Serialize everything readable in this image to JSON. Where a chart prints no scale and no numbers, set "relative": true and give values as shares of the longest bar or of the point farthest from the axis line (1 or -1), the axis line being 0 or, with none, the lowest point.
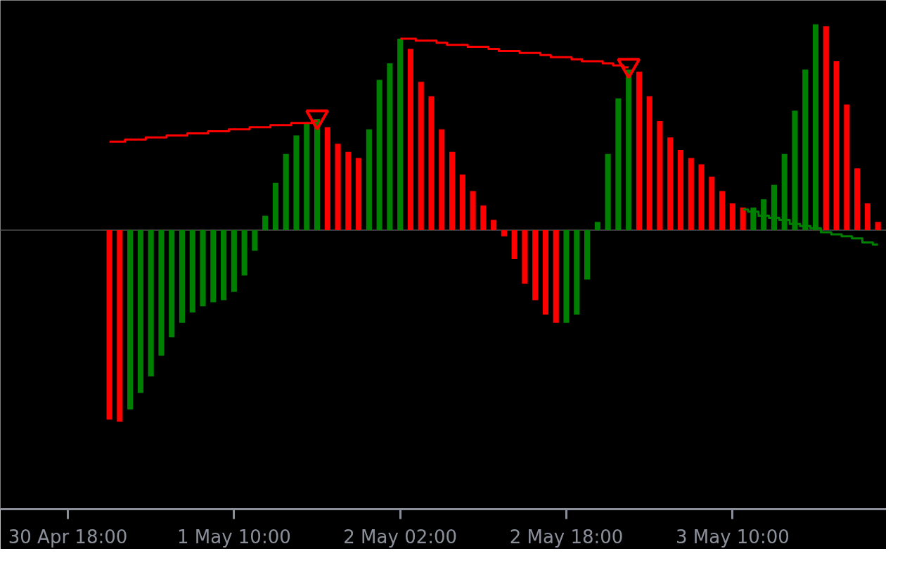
{
  "chart_data": {
    "type": "bar",
    "relative": true,
    "ref_lines": [
      {
        "axis": "y",
        "value": 0,
        "color": "#3a3a3a"
      }
    ],
    "categories": [
      "30 Apr 18:00",
      null,
      null,
      null,
      null,
      null,
      null,
      null,
      null,
      null,
      null,
      null,
      null,
      null,
      null,
      null,
      "1 May 10:00",
      null,
      null,
      null,
      null,
      null,
      null,
      null,
      null,
      null,
      null,
      null,
      null,
      null,
      null,
      null,
      "2 May 02:00",
      null,
      null,
      null,
      null,
      null,
      null,
      null,
      null,
      null,
      null,
      null,
      null,
      null,
      null,
      null,
      "2 May 18:00",
      null,
      null,
      null,
      null,
      null,
      null,
      null,
      null,
      null,
      null,
      null,
      null,
      null,
      null,
      null,
      "3 May 10:00",
      null,
      null,
      null,
      null,
      null,
      null,
      null,
      null,
      null,
      null,
      null,
      null,
      null,
      null
    ],
    "series": [
      {
        "values": [
          null,
          null,
          null,
          null,
          -0.92,
          -0.93,
          -0.87,
          -0.79,
          -0.71,
          -0.61,
          -0.52,
          -0.45,
          -0.4,
          -0.37,
          -0.35,
          -0.34,
          -0.3,
          -0.22,
          -0.1,
          0.07,
          0.23,
          0.37,
          0.46,
          0.52,
          0.54,
          0.5,
          0.42,
          0.38,
          0.35,
          0.49,
          0.73,
          0.81,
          0.93,
          0.88,
          0.72,
          0.65,
          0.49,
          0.38,
          0.27,
          0.19,
          0.12,
          0.05,
          -0.03,
          -0.14,
          -0.26,
          -0.34,
          -0.41,
          -0.45,
          -0.45,
          -0.41,
          -0.24,
          0.04,
          0.37,
          0.64,
          0.78,
          0.77,
          0.65,
          0.53,
          0.45,
          0.39,
          0.35,
          0.32,
          0.26,
          0.19,
          0.13,
          0.11,
          0.11,
          0.15,
          0.22,
          0.37,
          0.58,
          0.78,
          1.0,
          0.99,
          0.82,
          0.61,
          0.3,
          0.13,
          0.04
        ],
        "colors": [
          null,
          null,
          null,
          null,
          "#ff0000",
          "#ff0000",
          "#008000",
          "#008000",
          "#008000",
          "#008000",
          "#008000",
          "#008000",
          "#008000",
          "#008000",
          "#008000",
          "#008000",
          "#008000",
          "#008000",
          "#008000",
          "#008000",
          "#008000",
          "#008000",
          "#008000",
          "#008000",
          "#008000",
          "#ff0000",
          "#ff0000",
          "#ff0000",
          "#ff0000",
          "#008000",
          "#008000",
          "#008000",
          "#008000",
          "#ff0000",
          "#ff0000",
          "#ff0000",
          "#ff0000",
          "#ff0000",
          "#ff0000",
          "#ff0000",
          "#ff0000",
          "#ff0000",
          "#ff0000",
          "#ff0000",
          "#ff0000",
          "#ff0000",
          "#ff0000",
          "#ff0000",
          "#008000",
          "#008000",
          "#008000",
          "#008000",
          "#008000",
          "#008000",
          "#008000",
          "#ff0000",
          "#ff0000",
          "#ff0000",
          "#ff0000",
          "#ff0000",
          "#ff0000",
          "#ff0000",
          "#ff0000",
          "#ff0000",
          "#ff0000",
          "#ff0000",
          "#008000",
          "#008000",
          "#008000",
          "#008000",
          "#008000",
          "#008000",
          "#008000",
          "#ff0000",
          "#ff0000",
          "#ff0000",
          "#ff0000",
          "#ff0000",
          "#ff0000"
        ]
      },
      {
        "type": "step",
        "color": "#ff0000",
        "values": [
          null,
          null,
          null,
          null,
          0.43,
          0.43,
          0.44,
          0.44,
          0.45,
          0.45,
          0.46,
          0.46,
          0.47,
          0.47,
          0.48,
          0.48,
          0.49,
          0.49,
          0.5,
          0.5,
          0.51,
          0.51,
          0.52,
          0.52,
          0.53,
          null,
          null,
          null,
          null,
          null,
          null,
          null,
          null,
          null,
          null,
          null,
          null,
          null,
          null,
          null,
          null,
          null,
          null,
          null,
          null,
          null,
          null,
          null,
          null,
          null,
          null,
          null,
          null,
          null,
          null,
          null,
          null,
          null,
          null,
          null,
          null,
          null,
          null,
          null,
          null,
          null,
          null,
          null,
          null,
          null,
          null,
          null,
          null,
          null,
          null,
          null,
          null,
          null,
          null
        ]
      },
      {
        "type": "step",
        "color": "#ff0000",
        "values": [
          null,
          null,
          null,
          null,
          null,
          null,
          null,
          null,
          null,
          null,
          null,
          null,
          null,
          null,
          null,
          null,
          null,
          null,
          null,
          null,
          null,
          null,
          null,
          null,
          null,
          null,
          null,
          null,
          null,
          null,
          null,
          null,
          0.93,
          0.93,
          0.92,
          0.92,
          0.91,
          0.9,
          0.9,
          0.89,
          0.89,
          0.88,
          0.87,
          0.87,
          0.86,
          0.86,
          0.85,
          0.84,
          0.84,
          0.83,
          0.82,
          0.82,
          0.81,
          0.8,
          0.79,
          null,
          null,
          null,
          null,
          null,
          null,
          null,
          null,
          null,
          null,
          null,
          null,
          null,
          null,
          null,
          null,
          null,
          null,
          null,
          null,
          null,
          null,
          null,
          null
        ]
      },
      {
        "type": "step",
        "color": "#008000",
        "values": [
          null,
          null,
          null,
          null,
          null,
          null,
          null,
          null,
          null,
          null,
          null,
          null,
          null,
          null,
          null,
          null,
          null,
          null,
          null,
          null,
          null,
          null,
          null,
          null,
          null,
          null,
          null,
          null,
          null,
          null,
          null,
          null,
          null,
          null,
          null,
          null,
          null,
          null,
          null,
          null,
          null,
          null,
          null,
          null,
          null,
          null,
          null,
          null,
          null,
          null,
          null,
          null,
          null,
          null,
          null,
          null,
          null,
          null,
          null,
          null,
          null,
          null,
          null,
          null,
          null,
          0.1,
          0.09,
          0.07,
          0.06,
          0.05,
          0.03,
          0.02,
          0.01,
          -0.01,
          -0.02,
          -0.03,
          -0.04,
          -0.06,
          -0.07
        ]
      },
      {
        "type": "scatter",
        "color": "#ff0000",
        "marker": "triangle",
        "values": [
          null,
          null,
          null,
          null,
          null,
          null,
          null,
          null,
          null,
          null,
          null,
          null,
          null,
          null,
          null,
          null,
          null,
          null,
          null,
          null,
          null,
          null,
          null,
          null,
          0.55,
          null,
          null,
          null,
          null,
          null,
          null,
          null,
          null,
          null,
          null,
          null,
          null,
          null,
          null,
          null,
          null,
          null,
          null,
          null,
          null,
          null,
          null,
          null,
          null,
          null,
          null,
          null,
          null,
          null,
          0.8,
          null,
          null,
          null,
          null,
          null,
          null,
          null,
          null,
          null,
          null,
          null,
          null,
          null,
          null,
          null,
          null,
          null,
          null,
          null,
          null,
          null,
          null,
          null,
          null
        ]
      }
    ]
  }
}
